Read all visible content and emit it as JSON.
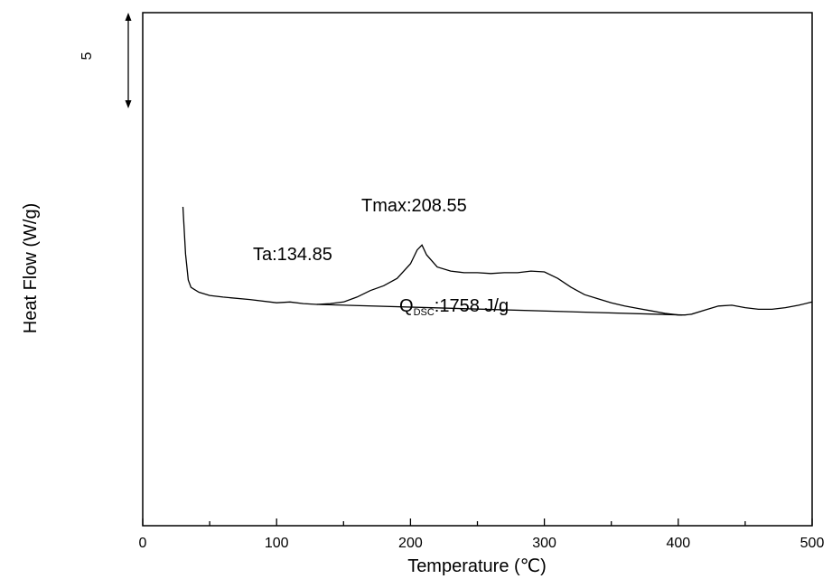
{
  "chart_data": {
    "type": "line",
    "title": "",
    "xlabel": "Temperature (℃)",
    "ylabel": "Heat Flow (W/g)",
    "xlim": [
      0,
      500
    ],
    "x_ticks": [
      "0",
      "100",
      "200",
      "300",
      "400",
      "500"
    ],
    "y_ticks": [],
    "grid": false,
    "legend": "none",
    "scale_bar": {
      "label": "5",
      "value": 5
    },
    "series": [
      {
        "color": "#000000",
        "x": [
          30,
          32,
          34,
          36,
          38,
          42,
          50,
          60,
          80,
          100,
          110,
          120,
          130,
          140,
          150,
          160,
          170,
          180,
          190,
          200,
          205,
          208.55,
          212,
          220,
          230,
          240,
          250,
          260,
          270,
          280,
          290,
          300,
          310,
          320,
          330,
          340,
          350,
          360,
          370,
          380,
          390,
          400,
          405,
          410,
          420,
          430,
          440,
          450,
          460,
          470,
          480,
          490,
          500
        ],
        "y": [
          14.5,
          11.6,
          10.0,
          9.55,
          9.45,
          9.25,
          9.05,
          8.95,
          8.8,
          8.6,
          8.65,
          8.55,
          8.5,
          8.55,
          8.65,
          8.95,
          9.35,
          9.65,
          10.1,
          11.0,
          11.85,
          12.15,
          11.55,
          10.8,
          10.55,
          10.45,
          10.45,
          10.4,
          10.45,
          10.45,
          10.55,
          10.5,
          10.1,
          9.55,
          9.1,
          8.85,
          8.6,
          8.4,
          8.25,
          8.1,
          7.95,
          7.85,
          7.85,
          7.9,
          8.15,
          8.4,
          8.45,
          8.3,
          8.2,
          8.2,
          8.3,
          8.45,
          8.65
        ]
      }
    ],
    "baseline": {
      "x": [
        130,
        403
      ],
      "y": [
        8.5,
        7.85
      ]
    },
    "annotations": [
      {
        "text": "Tmax:208.55",
        "x": 208.55
      },
      {
        "text": "Ta:134.85",
        "x": 134.85
      },
      {
        "text_main": "Q",
        "text_sub": "DSC",
        "text_tail": ":1758 J/g"
      }
    ]
  }
}
